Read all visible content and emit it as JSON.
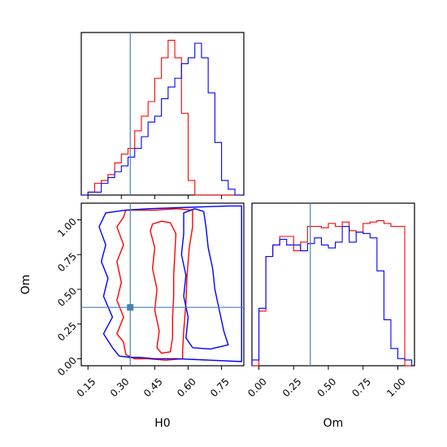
{
  "colors": {
    "series_a": "#ff0000",
    "series_b": "#0000ff",
    "truth": "#4682b4",
    "frame": "#000000",
    "background": "#ffffff"
  },
  "chart_data": [
    {
      "type": "step-histogram",
      "panel": "H0 marginal",
      "xlabel": "",
      "ylabel": "",
      "xlim": [
        0.12,
        0.85
      ],
      "x_tick_labels_shown": false,
      "y_ticks_shown": false,
      "bin_edges": [
        0.12,
        0.15,
        0.18,
        0.21,
        0.24,
        0.27,
        0.3,
        0.33,
        0.36,
        0.39,
        0.42,
        0.45,
        0.48,
        0.51,
        0.54,
        0.57,
        0.6,
        0.63,
        0.66,
        0.69,
        0.72,
        0.75,
        0.78,
        0.81,
        0.84
      ],
      "series": [
        {
          "color": "red",
          "values": [
            0,
            1,
            4,
            5,
            7,
            11,
            14,
            16,
            22,
            27,
            32,
            40,
            47,
            53,
            47,
            28,
            5,
            0,
            0,
            0,
            0,
            0,
            0,
            0
          ]
        },
        {
          "color": "blue",
          "values": [
            0,
            1,
            1,
            4,
            6,
            8,
            10,
            13,
            16,
            20,
            25,
            27,
            33,
            37,
            40,
            45,
            47,
            52,
            47,
            35,
            18,
            5,
            2,
            0
          ]
        }
      ],
      "truth_x": 0.34
    },
    {
      "type": "contour",
      "panel": "H0 vs Om",
      "xlabel": "H0",
      "ylabel": "Om",
      "xlim": [
        0.12,
        0.85
      ],
      "ylim": [
        -0.05,
        1.12
      ],
      "x_ticks": [
        "0.15",
        "0.30",
        "0.45",
        "0.60",
        "0.75"
      ],
      "y_ticks": [
        "0.00",
        "0.25",
        "0.50",
        "0.75",
        "1.00"
      ],
      "contours": [
        {
          "series": "red",
          "level": "outer",
          "points": [
            [
              0.32,
              1.07
            ],
            [
              0.45,
              1.07
            ],
            [
              0.55,
              1.08
            ],
            [
              0.62,
              1.07
            ],
            [
              0.62,
              0.95
            ],
            [
              0.605,
              0.8
            ],
            [
              0.595,
              0.6
            ],
            [
              0.59,
              0.4
            ],
            [
              0.58,
              0.2
            ],
            [
              0.575,
              0.05
            ],
            [
              0.575,
              0.0
            ],
            [
              0.5,
              -0.01
            ],
            [
              0.42,
              0.0
            ],
            [
              0.36,
              0.0
            ],
            [
              0.32,
              0.03
            ],
            [
              0.31,
              0.12
            ],
            [
              0.28,
              0.18
            ],
            [
              0.31,
              0.3
            ],
            [
              0.28,
              0.42
            ],
            [
              0.3,
              0.55
            ],
            [
              0.28,
              0.7
            ],
            [
              0.31,
              0.82
            ],
            [
              0.28,
              0.95
            ],
            [
              0.31,
              1.02
            ]
          ]
        },
        {
          "series": "red",
          "level": "inner",
          "points": [
            [
              0.44,
              0.97
            ],
            [
              0.48,
              0.99
            ],
            [
              0.52,
              0.98
            ],
            [
              0.545,
              0.9
            ],
            [
              0.54,
              0.75
            ],
            [
              0.535,
              0.6
            ],
            [
              0.535,
              0.45
            ],
            [
              0.53,
              0.3
            ],
            [
              0.53,
              0.15
            ],
            [
              0.52,
              0.05
            ],
            [
              0.48,
              0.04
            ],
            [
              0.46,
              0.08
            ],
            [
              0.47,
              0.2
            ],
            [
              0.45,
              0.35
            ],
            [
              0.46,
              0.5
            ],
            [
              0.44,
              0.65
            ],
            [
              0.45,
              0.8
            ],
            [
              0.43,
              0.92
            ]
          ]
        },
        {
          "series": "blue",
          "level": "outer",
          "points": [
            [
              0.42,
              1.08
            ],
            [
              0.6,
              1.09
            ],
            [
              0.78,
              1.1
            ],
            [
              0.84,
              1.1
            ],
            [
              0.84,
              -0.02
            ],
            [
              0.7,
              -0.01
            ],
            [
              0.55,
              0.0
            ],
            [
              0.45,
              0.0
            ],
            [
              0.38,
              0.01
            ],
            [
              0.34,
              0.01
            ],
            [
              0.29,
              0.02
            ],
            [
              0.26,
              0.08
            ],
            [
              0.22,
              0.18
            ],
            [
              0.26,
              0.3
            ],
            [
              0.22,
              0.45
            ],
            [
              0.24,
              0.58
            ],
            [
              0.21,
              0.7
            ],
            [
              0.23,
              0.82
            ],
            [
              0.2,
              0.95
            ],
            [
              0.23,
              1.05
            ],
            [
              0.32,
              1.07
            ]
          ]
        },
        {
          "series": "blue",
          "level": "inner",
          "points": [
            [
              0.58,
              1.05
            ],
            [
              0.63,
              1.08
            ],
            [
              0.67,
              1.06
            ],
            [
              0.68,
              0.95
            ],
            [
              0.69,
              0.8
            ],
            [
              0.71,
              0.65
            ],
            [
              0.72,
              0.5
            ],
            [
              0.74,
              0.35
            ],
            [
              0.76,
              0.2
            ],
            [
              0.78,
              0.1
            ],
            [
              0.7,
              0.07
            ],
            [
              0.62,
              0.08
            ],
            [
              0.59,
              0.15
            ],
            [
              0.6,
              0.3
            ],
            [
              0.58,
              0.45
            ],
            [
              0.59,
              0.6
            ],
            [
              0.57,
              0.75
            ],
            [
              0.58,
              0.9
            ]
          ]
        }
      ],
      "truth_point": [
        0.34,
        0.37
      ]
    },
    {
      "type": "step-histogram",
      "panel": "Om marginal",
      "xlabel": "Om",
      "ylabel": "",
      "xlim": [
        -0.05,
        1.12
      ],
      "x_ticks": [
        "0.00",
        "0.25",
        "0.50",
        "0.75",
        "1.00"
      ],
      "y_ticks_shown": false,
      "bin_edges": [
        -0.05,
        0.0,
        0.05,
        0.1,
        0.15,
        0.2,
        0.25,
        0.3,
        0.35,
        0.4,
        0.45,
        0.5,
        0.55,
        0.6,
        0.65,
        0.7,
        0.75,
        0.8,
        0.85,
        0.9,
        0.95,
        1.0,
        1.05,
        1.1
      ],
      "series": [
        {
          "color": "red",
          "values": [
            0,
            38,
            76,
            84,
            90,
            90,
            80,
            86,
            97,
            97,
            96,
            99,
            97,
            100,
            94,
            93,
            99,
            100,
            101,
            99,
            97,
            97,
            0
          ]
        },
        {
          "color": "blue",
          "values": [
            4,
            40,
            76,
            84,
            88,
            84,
            84,
            80,
            85,
            89,
            84,
            82,
            86,
            97,
            86,
            93,
            92,
            89,
            66,
            32,
            12,
            5,
            4
          ]
        }
      ],
      "truth_x": 0.37
    }
  ]
}
